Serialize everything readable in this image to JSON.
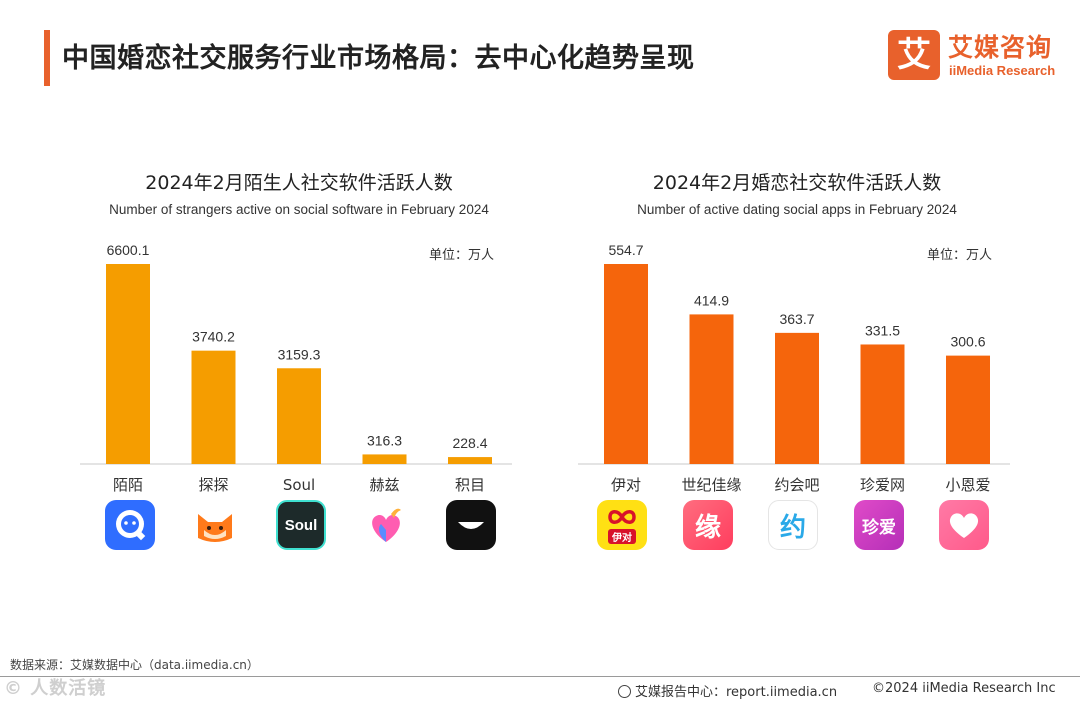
{
  "page": {
    "title": "中国婚恋社交服务行业市场格局：去中心化趋势呈现"
  },
  "logo": {
    "mark": "艾",
    "name_cn": "艾媒咨询",
    "name_en": "iiMedia Research"
  },
  "colors": {
    "accent": "#e8612c",
    "left_bar": "#f59d00",
    "right_bar": "#f5650c",
    "baseline": "#c8c8c8"
  },
  "chart_data": [
    {
      "type": "bar",
      "title": "2024年2月陌生人社交软件活跃人数",
      "subtitle": "Number of strangers active on social software in February 2024",
      "unit": "单位：万人",
      "categories": [
        "陌陌",
        "探探",
        "Soul",
        "赫兹",
        "积目"
      ],
      "values": [
        6600.1,
        3740.2,
        3159.3,
        316.3,
        228.4
      ],
      "value_labels": [
        "6600.1",
        "3740.2",
        "3159.3",
        "316.3",
        "228.4"
      ],
      "ylim": [
        0,
        6600.1
      ],
      "grid": false,
      "legend": "none"
    },
    {
      "type": "bar",
      "title": "2024年2月婚恋社交软件活跃人数",
      "subtitle": "Number of active dating social apps in February 2024",
      "unit": "单位：万人",
      "categories": [
        "伊对",
        "世纪佳缘",
        "约会吧",
        "珍爱网",
        "小恩爱"
      ],
      "values": [
        554.7,
        414.9,
        363.7,
        331.5,
        300.6
      ],
      "value_labels": [
        "554.7",
        "414.9",
        "363.7",
        "331.5",
        "300.6"
      ],
      "ylim": [
        0,
        554.7
      ],
      "grid": false,
      "legend": "none"
    }
  ],
  "icons_left": [
    {
      "name": "momo-app-icon",
      "label": "",
      "bg": "#2f6dff"
    },
    {
      "name": "tantan-app-icon",
      "label": "",
      "bg": "#ff7a1a"
    },
    {
      "name": "soul-app-icon",
      "label": "Soul",
      "bg": "#1d2a2a"
    },
    {
      "name": "hertz-app-icon",
      "label": "",
      "bg": "#ffffff"
    },
    {
      "name": "jimu-app-icon",
      "label": "",
      "bg": "#111111"
    }
  ],
  "icons_right": [
    {
      "name": "yidui-app-icon",
      "label": "伊对",
      "bg": "#ffe014"
    },
    {
      "name": "jiayuan-app-icon",
      "label": "缘",
      "bg": "#ff4d6d"
    },
    {
      "name": "yuehuiba-app-icon",
      "label": "约",
      "bg": "#ffffff"
    },
    {
      "name": "zhenai-app-icon",
      "label": "珍爱",
      "bg": "#d63cc4"
    },
    {
      "name": "xiaoenai-app-icon",
      "label": "",
      "bg": "#ff6a9a"
    }
  ],
  "footer": {
    "source": "数据来源：艾媒数据中心（data.iimedia.cn）",
    "watermark": "© 人数活镜",
    "report": "艾媒报告中心：report.iimedia.cn",
    "copyright": "©2024  iiMedia Research Inc"
  }
}
